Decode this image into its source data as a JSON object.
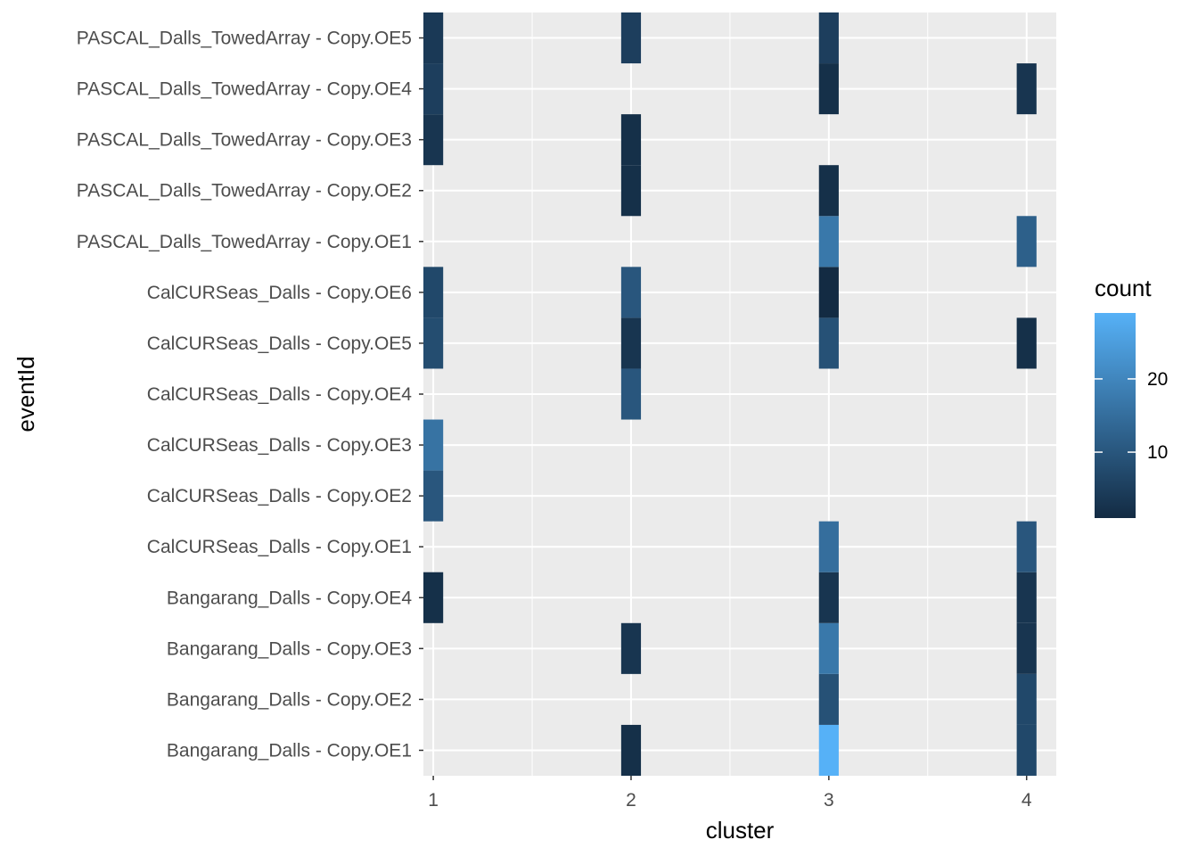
{
  "chart_data": {
    "type": "heatmap",
    "xlabel": "cluster",
    "ylabel": "eventId",
    "x_categories": [
      "1",
      "2",
      "3",
      "4"
    ],
    "y_categories": [
      "Bangarang_Dalls - Copy.OE1",
      "Bangarang_Dalls - Copy.OE2",
      "Bangarang_Dalls - Copy.OE3",
      "Bangarang_Dalls - Copy.OE4",
      "CalCURSeas_Dalls - Copy.OE1",
      "CalCURSeas_Dalls - Copy.OE2",
      "CalCURSeas_Dalls - Copy.OE3",
      "CalCURSeas_Dalls - Copy.OE4",
      "CalCURSeas_Dalls - Copy.OE5",
      "CalCURSeas_Dalls - Copy.OE6",
      "PASCAL_Dalls_TowedArray - Copy.OE1",
      "PASCAL_Dalls_TowedArray - Copy.OE2",
      "PASCAL_Dalls_TowedArray - Copy.OE3",
      "PASCAL_Dalls_TowedArray - Copy.OE4",
      "PASCAL_Dalls_TowedArray - Copy.OE5"
    ],
    "cells": [
      {
        "x": 2,
        "y": "Bangarang_Dalls - Copy.OE1",
        "count": 2
      },
      {
        "x": 3,
        "y": "Bangarang_Dalls - Copy.OE1",
        "count": 29
      },
      {
        "x": 4,
        "y": "Bangarang_Dalls - Copy.OE1",
        "count": 7
      },
      {
        "x": 3,
        "y": "Bangarang_Dalls - Copy.OE2",
        "count": 9
      },
      {
        "x": 4,
        "y": "Bangarang_Dalls - Copy.OE2",
        "count": 7
      },
      {
        "x": 2,
        "y": "Bangarang_Dalls - Copy.OE3",
        "count": 3
      },
      {
        "x": 3,
        "y": "Bangarang_Dalls - Copy.OE3",
        "count": 17
      },
      {
        "x": 4,
        "y": "Bangarang_Dalls - Copy.OE3",
        "count": 3
      },
      {
        "x": 1,
        "y": "Bangarang_Dalls - Copy.OE4",
        "count": 2
      },
      {
        "x": 3,
        "y": "Bangarang_Dalls - Copy.OE4",
        "count": 3
      },
      {
        "x": 4,
        "y": "Bangarang_Dalls - Copy.OE4",
        "count": 3
      },
      {
        "x": 3,
        "y": "CalCURSeas_Dalls - Copy.OE1",
        "count": 15
      },
      {
        "x": 4,
        "y": "CalCURSeas_Dalls - Copy.OE1",
        "count": 10
      },
      {
        "x": 1,
        "y": "CalCURSeas_Dalls - Copy.OE2",
        "count": 10
      },
      {
        "x": 1,
        "y": "CalCURSeas_Dalls - Copy.OE3",
        "count": 16
      },
      {
        "x": 2,
        "y": "CalCURSeas_Dalls - Copy.OE4",
        "count": 10
      },
      {
        "x": 1,
        "y": "CalCURSeas_Dalls - Copy.OE5",
        "count": 8
      },
      {
        "x": 2,
        "y": "CalCURSeas_Dalls - Copy.OE5",
        "count": 3
      },
      {
        "x": 3,
        "y": "CalCURSeas_Dalls - Copy.OE5",
        "count": 9
      },
      {
        "x": 4,
        "y": "CalCURSeas_Dalls - Copy.OE5",
        "count": 2
      },
      {
        "x": 1,
        "y": "CalCURSeas_Dalls - Copy.OE6",
        "count": 7
      },
      {
        "x": 2,
        "y": "CalCURSeas_Dalls - Copy.OE6",
        "count": 10
      },
      {
        "x": 3,
        "y": "CalCURSeas_Dalls - Copy.OE6",
        "count": 1
      },
      {
        "x": 3,
        "y": "PASCAL_Dalls_TowedArray - Copy.OE1",
        "count": 17
      },
      {
        "x": 4,
        "y": "PASCAL_Dalls_TowedArray - Copy.OE1",
        "count": 12
      },
      {
        "x": 2,
        "y": "PASCAL_Dalls_TowedArray - Copy.OE2",
        "count": 2
      },
      {
        "x": 3,
        "y": "PASCAL_Dalls_TowedArray - Copy.OE2",
        "count": 2
      },
      {
        "x": 1,
        "y": "PASCAL_Dalls_TowedArray - Copy.OE3",
        "count": 3
      },
      {
        "x": 2,
        "y": "PASCAL_Dalls_TowedArray - Copy.OE3",
        "count": 2
      },
      {
        "x": 1,
        "y": "PASCAL_Dalls_TowedArray - Copy.OE4",
        "count": 5
      },
      {
        "x": 3,
        "y": "PASCAL_Dalls_TowedArray - Copy.OE4",
        "count": 2
      },
      {
        "x": 4,
        "y": "PASCAL_Dalls_TowedArray - Copy.OE4",
        "count": 3
      },
      {
        "x": 1,
        "y": "PASCAL_Dalls_TowedArray - Copy.OE5",
        "count": 4
      },
      {
        "x": 2,
        "y": "PASCAL_Dalls_TowedArray - Copy.OE5",
        "count": 5
      },
      {
        "x": 3,
        "y": "PASCAL_Dalls_TowedArray - Copy.OE5",
        "count": 5
      }
    ],
    "xlim": [
      0.95,
      4.15
    ],
    "legend": {
      "title": "count",
      "ticks": [
        10,
        20
      ],
      "range": [
        1,
        29
      ],
      "low_color": "#132B43",
      "high_color": "#56B1F7",
      "position": "right"
    },
    "panel_color": "#EBEBEB",
    "grid": true
  }
}
